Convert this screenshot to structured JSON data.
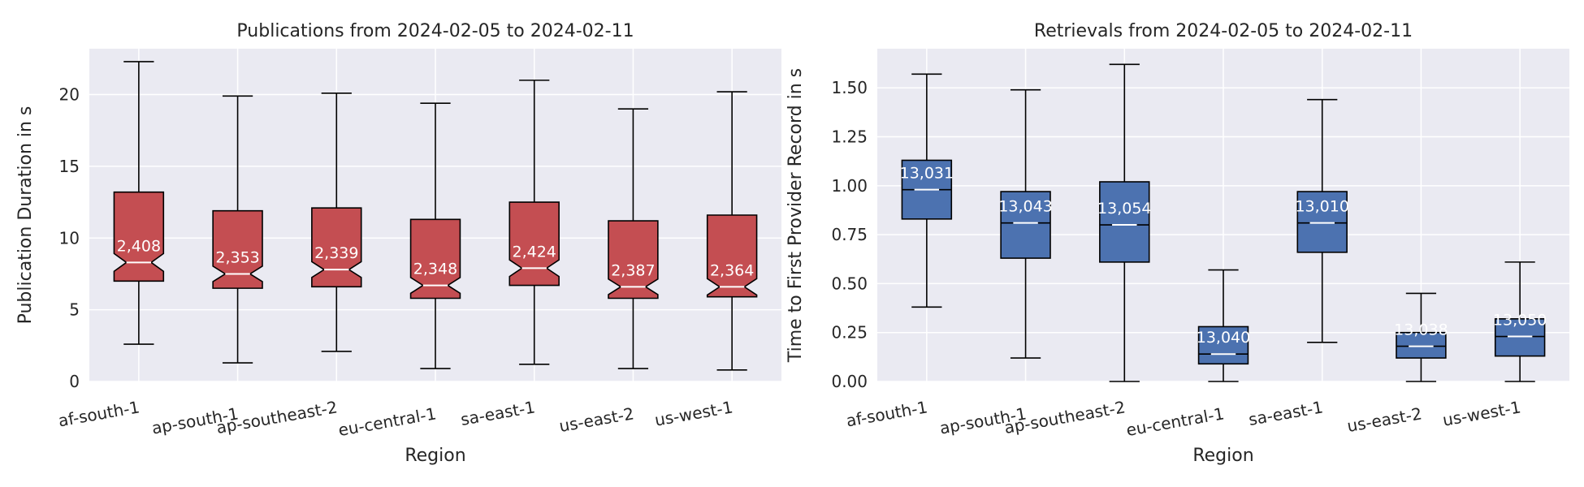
{
  "chart_data": [
    {
      "type": "box",
      "title": "Publications from 2024-02-05 to 2024-02-11",
      "xlabel": "Region",
      "ylabel": "Publication Duration in s",
      "categories": [
        "af-south-1",
        "ap-south-1",
        "ap-southeast-2",
        "eu-central-1",
        "sa-east-1",
        "us-east-2",
        "us-west-1"
      ],
      "yticks": [
        "0",
        "5",
        "10",
        "15",
        "20"
      ],
      "ylim": [
        0,
        23.2
      ],
      "notched": true,
      "box_color": "#c44e52",
      "median_color": "#ffffff",
      "grid": true,
      "boxes": [
        {
          "whislo": 2.6,
          "q1": 7.0,
          "med": 8.3,
          "q3": 13.2,
          "whishi": 22.3,
          "count": "2,408"
        },
        {
          "whislo": 1.3,
          "q1": 6.5,
          "med": 7.5,
          "q3": 11.9,
          "whishi": 19.9,
          "count": "2,353"
        },
        {
          "whislo": 2.1,
          "q1": 6.6,
          "med": 7.8,
          "q3": 12.1,
          "whishi": 20.1,
          "count": "2,339"
        },
        {
          "whislo": 0.9,
          "q1": 5.8,
          "med": 6.7,
          "q3": 11.3,
          "whishi": 19.4,
          "count": "2,348"
        },
        {
          "whislo": 1.2,
          "q1": 6.7,
          "med": 7.9,
          "q3": 12.5,
          "whishi": 21.0,
          "count": "2,424"
        },
        {
          "whislo": 0.9,
          "q1": 5.8,
          "med": 6.6,
          "q3": 11.2,
          "whishi": 19.0,
          "count": "2,387"
        },
        {
          "whislo": 0.8,
          "q1": 5.9,
          "med": 6.6,
          "q3": 11.6,
          "whishi": 20.2,
          "count": "2,364"
        }
      ]
    },
    {
      "type": "box",
      "title": "Retrievals from 2024-02-05 to 2024-02-11",
      "xlabel": "Region",
      "ylabel": "Time to First Provider Record in s",
      "categories": [
        "af-south-1",
        "ap-south-1",
        "ap-southeast-2",
        "eu-central-1",
        "sa-east-1",
        "us-east-2",
        "us-west-1"
      ],
      "yticks": [
        "0.00",
        "0.25",
        "0.50",
        "0.75",
        "1.00",
        "1.25",
        "1.50"
      ],
      "ylim": [
        0,
        1.7
      ],
      "notched": false,
      "box_color": "#4c72b0",
      "median_color": "#ffffff",
      "grid": true,
      "boxes": [
        {
          "whislo": 0.38,
          "q1": 0.83,
          "med": 0.98,
          "q3": 1.13,
          "whishi": 1.57,
          "count": "13,031"
        },
        {
          "whislo": 0.12,
          "q1": 0.63,
          "med": 0.81,
          "q3": 0.97,
          "whishi": 1.49,
          "count": "13,043"
        },
        {
          "whislo": 0.0,
          "q1": 0.61,
          "med": 0.8,
          "q3": 1.02,
          "whishi": 1.62,
          "count": "13,054"
        },
        {
          "whislo": 0.0,
          "q1": 0.09,
          "med": 0.14,
          "q3": 0.28,
          "whishi": 0.57,
          "count": "13,040"
        },
        {
          "whislo": 0.2,
          "q1": 0.66,
          "med": 0.81,
          "q3": 0.97,
          "whishi": 1.44,
          "count": "13,010"
        },
        {
          "whislo": 0.0,
          "q1": 0.12,
          "med": 0.18,
          "q3": 0.25,
          "whishi": 0.45,
          "count": "13,038"
        },
        {
          "whislo": 0.0,
          "q1": 0.13,
          "med": 0.23,
          "q3": 0.32,
          "whishi": 0.61,
          "count": "13,050"
        }
      ]
    }
  ]
}
